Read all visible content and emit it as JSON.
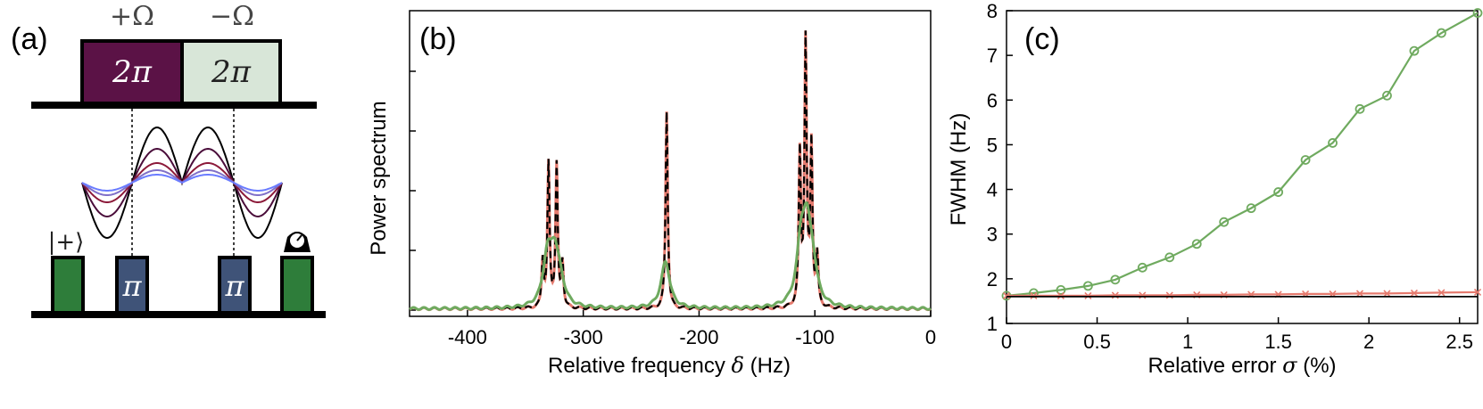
{
  "panel_a": {
    "label": "(a)",
    "omega_plus": "+Ω",
    "omega_minus": "−Ω",
    "pulse_left": "2π",
    "pulse_right": "2π",
    "state_label": "|+⟩",
    "pi_left": "π",
    "pi_right": "π",
    "colors": {
      "pulse_left": "#5b1246",
      "pulse_right": "#d8e6d8",
      "init": "#2e7d3a",
      "pi": "#3f5378",
      "curves": [
        "#000000",
        "#4a0d3a",
        "#8c1a3a",
        "#8070c8",
        "#6a7cff"
      ]
    }
  },
  "panel_b": {
    "label": "(b)",
    "ylabel": "Power spectrum",
    "xlabel_prefix": "Relative frequency ",
    "xlabel_symbol": "δ",
    "xlabel_suffix": " (Hz)",
    "colors": {
      "black": "#000000",
      "red": "#e57a6e",
      "green": "#6faa5f"
    }
  },
  "panel_c": {
    "label": "(c)",
    "ylabel": "FWHM (Hz)",
    "xlabel_prefix": "Relative error ",
    "xlabel_symbol": "σ",
    "xlabel_suffix": " (%)",
    "colors": {
      "green": "#6faa5f",
      "red": "#e57a6e",
      "black": "#000000"
    }
  },
  "chart_data": [
    {
      "type": "line",
      "panel": "b",
      "xlabel": "Relative frequency δ (Hz)",
      "ylabel": "Power spectrum",
      "xlim": [
        -450,
        0
      ],
      "xticks": [
        -400,
        -300,
        -200,
        -100,
        0
      ],
      "xtick_labels": [
        "-400",
        "-300",
        "-200",
        "-100",
        "0"
      ],
      "series": [
        {
          "peaks": [
            {
              "x": -335,
              "h": 0.17
            },
            {
              "x": -330,
              "h": 0.52
            },
            {
              "x": -323,
              "h": 0.52
            },
            {
              "x": -318,
              "h": 0.16
            },
            {
              "x": -228,
              "h": 0.72
            },
            {
              "x": -113,
              "h": 0.55
            },
            {
              "x": -108,
              "h": 0.96
            },
            {
              "x": -103,
              "h": 0.58
            },
            {
              "x": -98,
              "h": 0.18
            }
          ]
        },
        {
          "peaks": [
            {
              "x": -335,
              "h": 0.17
            },
            {
              "x": -330,
              "h": 0.52
            },
            {
              "x": -323,
              "h": 0.52
            },
            {
              "x": -318,
              "h": 0.16
            },
            {
              "x": -228,
              "h": 0.72
            },
            {
              "x": -113,
              "h": 0.55
            },
            {
              "x": -108,
              "h": 0.96
            },
            {
              "x": -103,
              "h": 0.58
            },
            {
              "x": -98,
              "h": 0.18
            }
          ]
        },
        {
          "peaks": [
            {
              "x": -331,
              "h": 0.17
            },
            {
              "x": -325,
              "h": 0.17
            },
            {
              "x": -320,
              "h": 0.07
            },
            {
              "x": -229,
              "h": 0.17
            },
            {
              "x": -112,
              "h": 0.2
            },
            {
              "x": -107,
              "h": 0.24
            },
            {
              "x": -102,
              "h": 0.12
            }
          ]
        }
      ]
    },
    {
      "type": "line",
      "panel": "c",
      "xlabel": "Relative error σ (%)",
      "ylabel": "FWHM (Hz)",
      "xlim": [
        0,
        2.6
      ],
      "ylim": [
        1,
        8
      ],
      "xticks": [
        0,
        0.5,
        1,
        1.5,
        2,
        2.5
      ],
      "xtick_labels": [
        "0",
        "0.5",
        "1",
        "1.5",
        "2",
        "2.5"
      ],
      "yticks": [
        1,
        2,
        3,
        4,
        5,
        6,
        7,
        8
      ],
      "ytick_labels": [
        "1",
        "2",
        "3",
        "4",
        "5",
        "6",
        "7",
        "8"
      ],
      "series": [
        {
          "marker": "circle",
          "x": [
            0,
            0.15,
            0.3,
            0.45,
            0.6,
            0.75,
            0.9,
            1.05,
            1.2,
            1.35,
            1.5,
            1.65,
            1.8,
            1.95,
            2.1,
            2.25,
            2.4,
            2.6
          ],
          "y": [
            1.62,
            1.68,
            1.75,
            1.84,
            1.98,
            2.25,
            2.48,
            2.78,
            3.27,
            3.58,
            3.94,
            4.66,
            5.04,
            5.8,
            6.1,
            7.1,
            7.5,
            7.95
          ]
        },
        {
          "marker": "x",
          "x": [
            0,
            0.15,
            0.3,
            0.45,
            0.6,
            0.75,
            0.9,
            1.05,
            1.2,
            1.35,
            1.5,
            1.65,
            1.8,
            1.95,
            2.1,
            2.25,
            2.4,
            2.6
          ],
          "y": [
            1.62,
            1.62,
            1.62,
            1.62,
            1.63,
            1.63,
            1.63,
            1.64,
            1.64,
            1.65,
            1.65,
            1.66,
            1.66,
            1.67,
            1.67,
            1.68,
            1.69,
            1.7
          ]
        },
        {
          "marker": "none",
          "x": [
            0,
            2.6
          ],
          "y": [
            1.6,
            1.6
          ]
        }
      ]
    }
  ]
}
